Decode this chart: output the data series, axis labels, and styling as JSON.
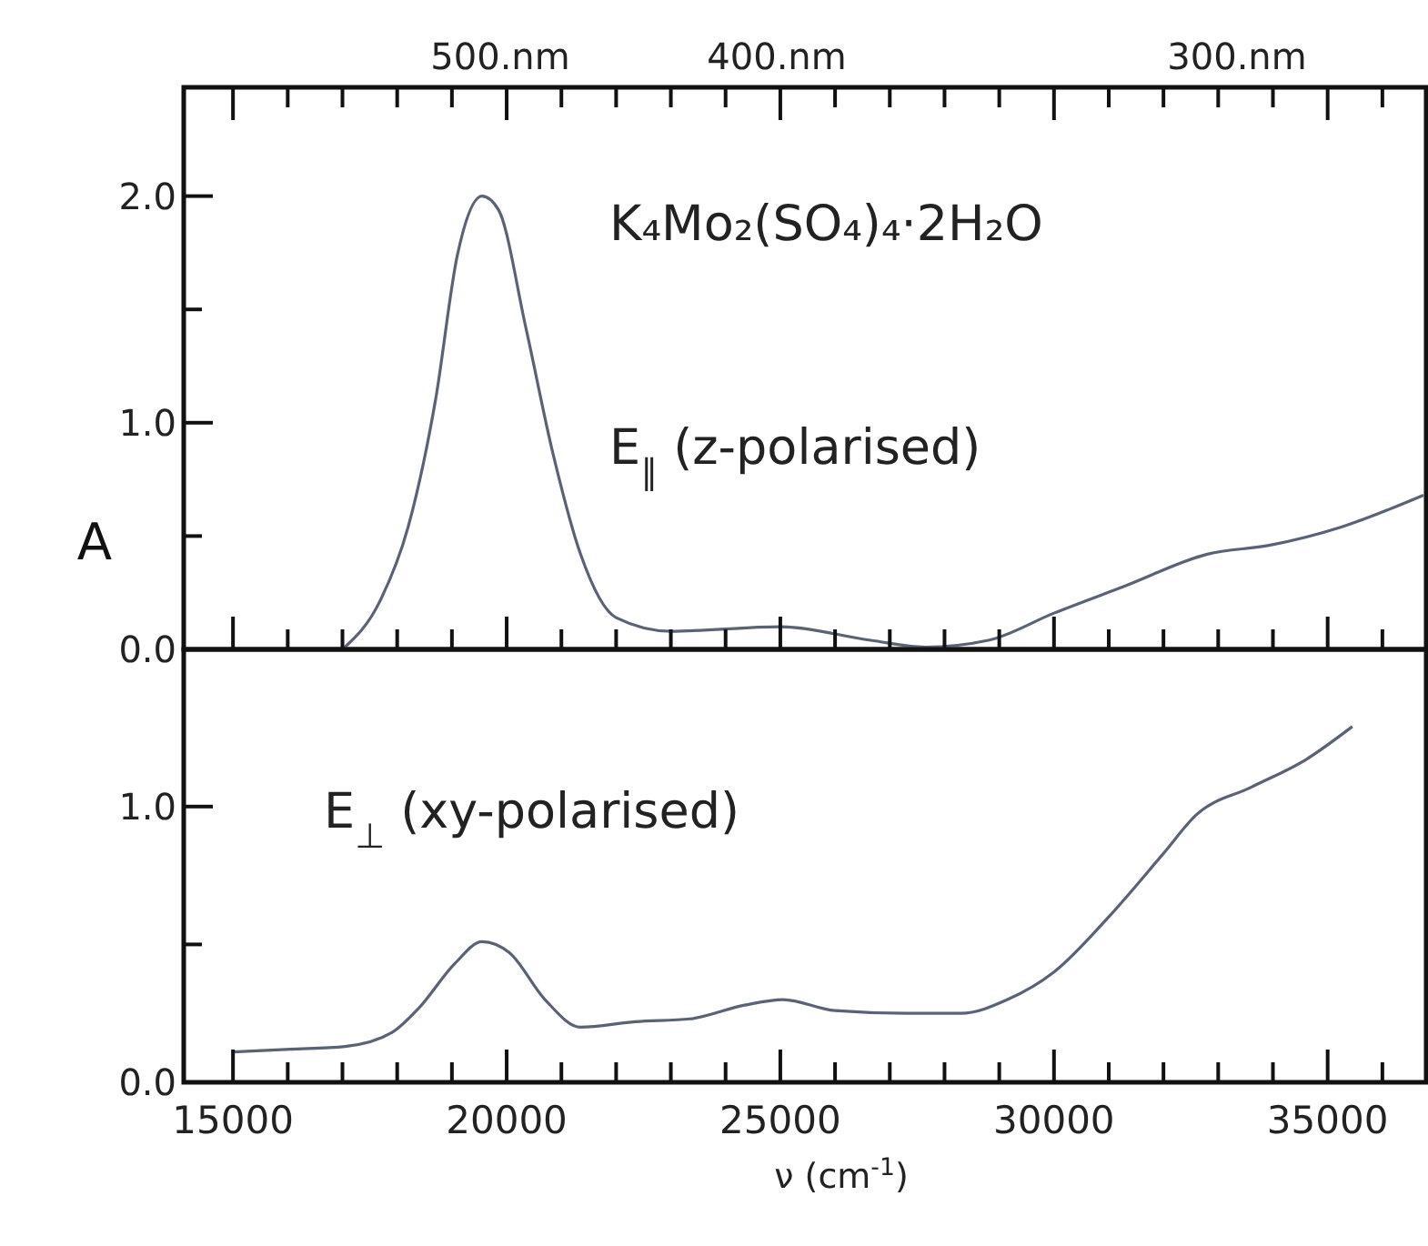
{
  "chart_data": [
    {
      "type": "line",
      "ylabel": "A",
      "annotations": [
        "K₄Mo₂(SO₄)₄·2H₂O",
        "E$_{∥}$ (z-polarised)",
        "500.nm",
        "400.nm",
        "300.nm"
      ],
      "xlim": [
        14100,
        36800
      ],
      "ylim": [
        0,
        2.48
      ],
      "tick_labels": "y",
      "yticks": [
        {
          "value": 0,
          "label": "0.0"
        },
        {
          "value": 0.5,
          "label": null
        },
        {
          "value": 1,
          "label": "1.0"
        },
        {
          "value": 1.5,
          "label": null
        },
        {
          "value": 2,
          "label": "2.0"
        }
      ],
      "xticks": [
        15000,
        {
          "value": 16000,
          "label": null
        },
        {
          "value": 17000,
          "label": null
        },
        {
          "value": 18000,
          "label": null
        },
        {
          "value": 19000,
          "label": null
        },
        20000,
        {
          "value": 21000,
          "label": null
        },
        {
          "value": 22000,
          "label": null
        },
        {
          "value": 23000,
          "label": null
        },
        {
          "value": 24000,
          "label": null
        },
        25000,
        {
          "value": 26000,
          "label": null
        },
        {
          "value": 27000,
          "label": null
        },
        {
          "value": 28000,
          "label": null
        },
        {
          "value": 29000,
          "label": null
        },
        30000,
        {
          "value": 31000,
          "label": null
        },
        {
          "value": 32000,
          "label": null
        },
        {
          "value": 33000,
          "label": null
        },
        {
          "value": 34000,
          "label": null
        },
        35000,
        {
          "value": 36000,
          "label": null
        }
      ],
      "series": [
        {
          "color": "#5a6275",
          "x": [
            17000,
            17700,
            18200,
            18700,
            19100,
            19550,
            19850,
            20350,
            20850,
            21350,
            22000,
            23000,
            25000,
            26650,
            27650,
            28800,
            30000,
            31300,
            32800,
            33950,
            35250,
            36750
          ],
          "values": [
            0.0,
            0.22,
            0.54,
            1.1,
            1.74,
            2.0,
            1.94,
            1.42,
            0.86,
            0.42,
            0.14,
            0.08,
            0.1,
            0.04,
            0.01,
            0.04,
            0.16,
            0.28,
            0.42,
            0.46,
            0.54,
            0.68
          ]
        }
      ]
    },
    {
      "type": "line",
      "xlabel": "ν (cm$^{-1}$)",
      "annotations": [
        "E$_{⊥}$ (xy-polarised)"
      ],
      "xlim": [
        14100,
        36800
      ],
      "ylim": [
        0,
        1.57
      ],
      "yticks": [
        {
          "value": 0,
          "label": "0.0"
        },
        {
          "value": 0.5,
          "label": null
        },
        {
          "value": 1,
          "label": "1.0"
        }
      ],
      "xticks": [
        15000,
        {
          "value": 16000,
          "label": null
        },
        {
          "value": 17000,
          "label": null
        },
        {
          "value": 18000,
          "label": null
        },
        {
          "value": 19000,
          "label": null
        },
        20000,
        {
          "value": 21000,
          "label": null
        },
        {
          "value": 22000,
          "label": null
        },
        {
          "value": 23000,
          "label": null
        },
        {
          "value": 24000,
          "label": null
        },
        25000,
        {
          "value": 26000,
          "label": null
        },
        {
          "value": 27000,
          "label": null
        },
        {
          "value": 28000,
          "label": null
        },
        {
          "value": 29000,
          "label": null
        },
        30000,
        {
          "value": 31000,
          "label": null
        },
        {
          "value": 32000,
          "label": null
        },
        {
          "value": 33000,
          "label": null
        },
        {
          "value": 34000,
          "label": null
        },
        35000,
        {
          "value": 36000,
          "label": null
        }
      ],
      "series": [
        {
          "color": "#5a6275",
          "x": [
            15000,
            16050,
            17050,
            17900,
            18400,
            19050,
            19550,
            20050,
            20700,
            21350,
            22350,
            23350,
            24350,
            25050,
            26000,
            27300,
            28300,
            29150,
            30000,
            31000,
            32000,
            32600,
            33600,
            34600,
            35450
          ],
          "values": [
            0.11,
            0.12,
            0.13,
            0.18,
            0.27,
            0.43,
            0.51,
            0.47,
            0.3,
            0.2,
            0.22,
            0.23,
            0.28,
            0.3,
            0.26,
            0.25,
            0.25,
            0.3,
            0.4,
            0.6,
            0.83,
            0.97,
            1.07,
            1.17,
            1.29
          ]
        }
      ]
    }
  ]
}
